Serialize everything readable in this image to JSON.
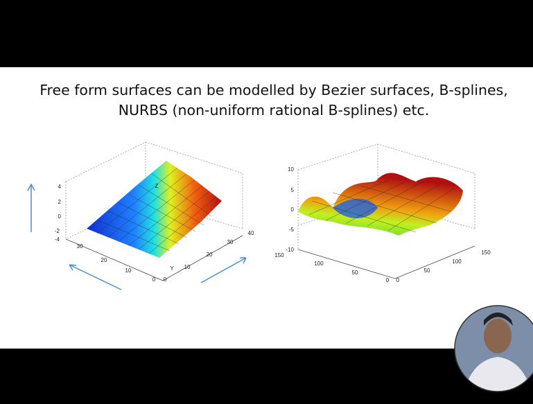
{
  "slide": {
    "text_lines": [
      "Free form surfaces can be modelled by Bezier surfaces, B-splines,",
      "NURBS (non-uniform rational B-splines) etc."
    ]
  },
  "left_plot": {
    "z_ticks": [
      "4",
      "2",
      "0",
      "-2",
      "-4"
    ],
    "x_ticks": [
      "30",
      "20",
      "10",
      "0"
    ],
    "y_ticks": [
      "0",
      "10",
      "20",
      "30",
      "40"
    ],
    "z_label": "Z",
    "y_label": "Y"
  },
  "right_plot": {
    "z_ticks": [
      "10",
      "5",
      "0",
      "-5",
      "-10"
    ],
    "x_ticks": [
      "150",
      "100",
      "50",
      "0"
    ],
    "y_ticks": [
      "0",
      "50",
      "100",
      "150"
    ]
  }
}
